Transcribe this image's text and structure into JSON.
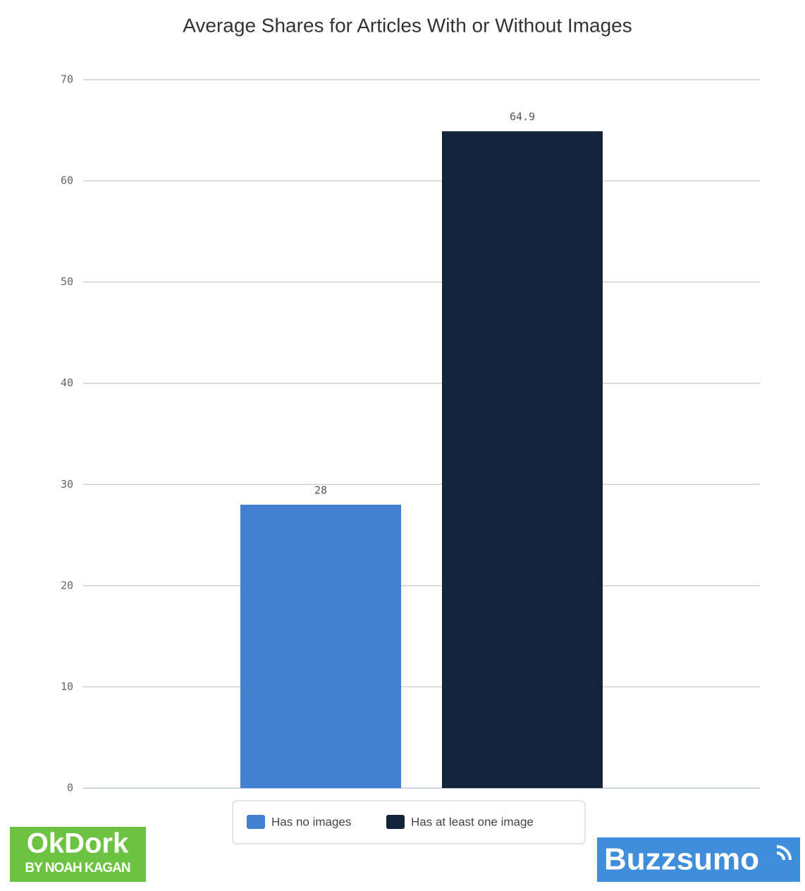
{
  "chart_data": {
    "type": "bar",
    "title": "Average Shares for Articles With or Without Images",
    "categories": [
      null
    ],
    "series": [
      {
        "name": "Has no images",
        "color": "#4480d0",
        "values": [
          28
        ]
      },
      {
        "name": "Has at least one image",
        "color": "#14233a",
        "values": [
          64.9
        ]
      }
    ],
    "ylim": [
      0,
      70
    ],
    "yticks": [
      0,
      10,
      20,
      30,
      40,
      50,
      60,
      70
    ],
    "grid": true,
    "legend": "bottom"
  },
  "logos": {
    "left": {
      "name": "OkDork",
      "byline": "BY NOAH KAGAN"
    },
    "right": {
      "name": "Buzzsumo"
    }
  }
}
